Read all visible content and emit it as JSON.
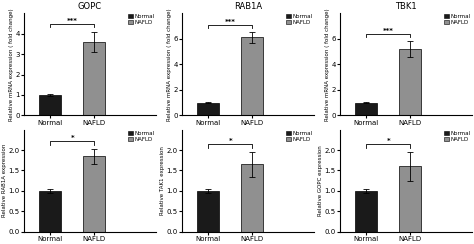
{
  "chart_data": [
    {
      "type": "bar",
      "title": "GOPC",
      "ylabel": "Relative mRNA expression ( fold change)",
      "categories": [
        "Normal",
        "NAFLD"
      ],
      "series": [
        {
          "name": "Normal",
          "color": "#1a1a1a",
          "values": [
            1.0,
            null
          ],
          "errors": [
            0.05,
            null
          ]
        },
        {
          "name": "NAFLD",
          "color": "#909090",
          "values": [
            null,
            3.6
          ],
          "errors": [
            null,
            0.5
          ]
        }
      ],
      "ylim": [
        0,
        5
      ],
      "yticks": [
        0,
        1,
        2,
        3,
        4
      ],
      "annotation": "***",
      "legend": "upper right"
    },
    {
      "type": "bar",
      "title": "RAB1A",
      "ylabel": "Relative mRNA expression ( fold change)",
      "categories": [
        "Normal",
        "NAFLD"
      ],
      "series": [
        {
          "name": "Normal",
          "color": "#1a1a1a",
          "values": [
            1.0,
            null
          ],
          "errors": [
            0.05,
            null
          ]
        },
        {
          "name": "NAFLD",
          "color": "#909090",
          "values": [
            null,
            6.1
          ],
          "errors": [
            null,
            0.4
          ]
        }
      ],
      "ylim": [
        0,
        8
      ],
      "yticks": [
        0,
        2,
        4,
        6
      ],
      "annotation": "***",
      "legend": "upper right"
    },
    {
      "type": "bar",
      "title": "TBK1",
      "ylabel": "Relative mRNA expression ( fold change)",
      "categories": [
        "Normal",
        "NAFLD"
      ],
      "series": [
        {
          "name": "Normal",
          "color": "#1a1a1a",
          "values": [
            1.0,
            null
          ],
          "errors": [
            0.05,
            null
          ]
        },
        {
          "name": "NAFLD",
          "color": "#909090",
          "values": [
            null,
            5.2
          ],
          "errors": [
            null,
            0.6
          ]
        }
      ],
      "ylim": [
        0,
        8
      ],
      "yticks": [
        0,
        2,
        4,
        6
      ],
      "annotation": "***",
      "legend": "upper right"
    },
    {
      "type": "bar",
      "ylabel": "Relative RAB1A expression",
      "categories": [
        "Normal",
        "NAFLD"
      ],
      "series": [
        {
          "name": "Normal",
          "color": "#1a1a1a",
          "values": [
            1.0,
            null
          ],
          "errors": [
            0.05,
            null
          ]
        },
        {
          "name": "NAFLD",
          "color": "#909090",
          "values": [
            null,
            1.85
          ],
          "errors": [
            null,
            0.18
          ]
        }
      ],
      "ylim": [
        0.0,
        2.5
      ],
      "yticks": [
        0.0,
        0.5,
        1.0,
        1.5,
        2.0
      ],
      "annotation": "*",
      "legend": "upper right"
    },
    {
      "type": "bar",
      "ylabel": "Relative TAK1 expression",
      "categories": [
        "Normal",
        "NAFLD"
      ],
      "series": [
        {
          "name": "Normal",
          "color": "#1a1a1a",
          "values": [
            1.0,
            null
          ],
          "errors": [
            0.05,
            null
          ]
        },
        {
          "name": "NAFLD",
          "color": "#909090",
          "values": [
            null,
            1.65
          ],
          "errors": [
            null,
            0.3
          ]
        }
      ],
      "ylim": [
        0.0,
        2.5
      ],
      "yticks": [
        0.0,
        0.5,
        1.0,
        1.5,
        2.0
      ],
      "annotation": "*",
      "legend": "upper right"
    },
    {
      "type": "bar",
      "ylabel": "Relative GOPC expression",
      "categories": [
        "Normal",
        "NAFLD"
      ],
      "series": [
        {
          "name": "Normal",
          "color": "#1a1a1a",
          "values": [
            1.0,
            null
          ],
          "errors": [
            0.05,
            null
          ]
        },
        {
          "name": "NAFLD",
          "color": "#909090",
          "values": [
            null,
            1.6
          ],
          "errors": [
            null,
            0.35
          ]
        }
      ],
      "ylim": [
        0.0,
        2.5
      ],
      "yticks": [
        0.0,
        0.5,
        1.0,
        1.5,
        2.0
      ],
      "annotation": "*",
      "legend": "upper right"
    }
  ]
}
